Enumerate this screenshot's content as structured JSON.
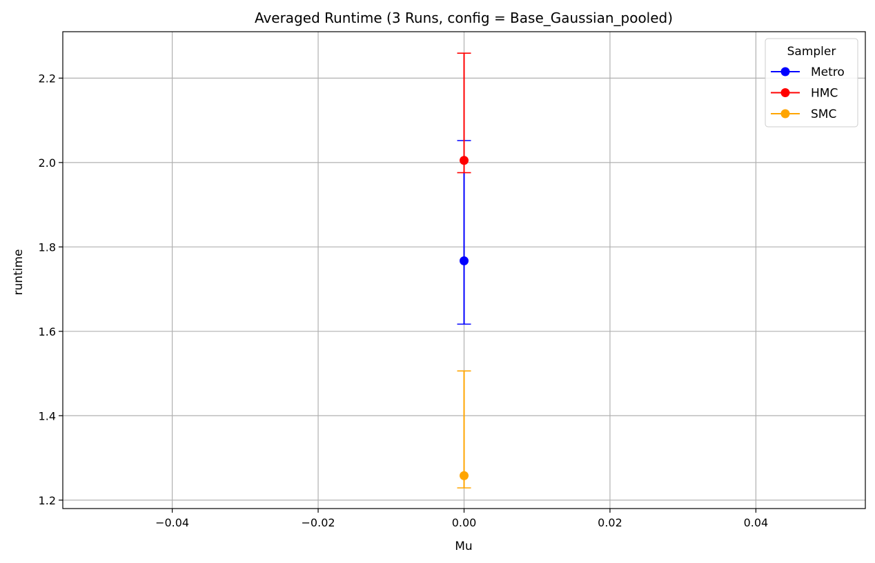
{
  "chart_data": {
    "type": "scatter",
    "title": "Averaged Runtime (3 Runs, config = Base_Gaussian_pooled)",
    "xlabel": "Mu",
    "ylabel": "runtime",
    "xlim": [
      -0.055,
      0.055
    ],
    "ylim": [
      1.18,
      2.31
    ],
    "xticks": [
      -0.04,
      -0.02,
      0.0,
      0.02,
      0.04
    ],
    "xtick_labels": [
      "−0.04",
      "−0.02",
      "0.00",
      "0.02",
      "0.04"
    ],
    "yticks": [
      1.2,
      1.4,
      1.6,
      1.8,
      2.0,
      2.2
    ],
    "ytick_labels": [
      "1.2",
      "1.4",
      "1.6",
      "1.8",
      "2.0",
      "2.2"
    ],
    "grid": true,
    "legend": {
      "title": "Sampler",
      "placement": "top-right"
    },
    "series": [
      {
        "name": "Metro",
        "color": "#0000ff",
        "x": [
          0.0
        ],
        "y": [
          1.767
        ],
        "yerr_low": [
          1.617
        ],
        "yerr_high": [
          2.052
        ]
      },
      {
        "name": "HMC",
        "color": "#ff0000",
        "x": [
          0.0
        ],
        "y": [
          2.005
        ],
        "yerr_low": [
          1.976
        ],
        "yerr_high": [
          2.259
        ]
      },
      {
        "name": "SMC",
        "color": "#ffa500",
        "x": [
          0.0
        ],
        "y": [
          1.258
        ],
        "yerr_low": [
          1.229
        ],
        "yerr_high": [
          1.506
        ]
      }
    ]
  }
}
